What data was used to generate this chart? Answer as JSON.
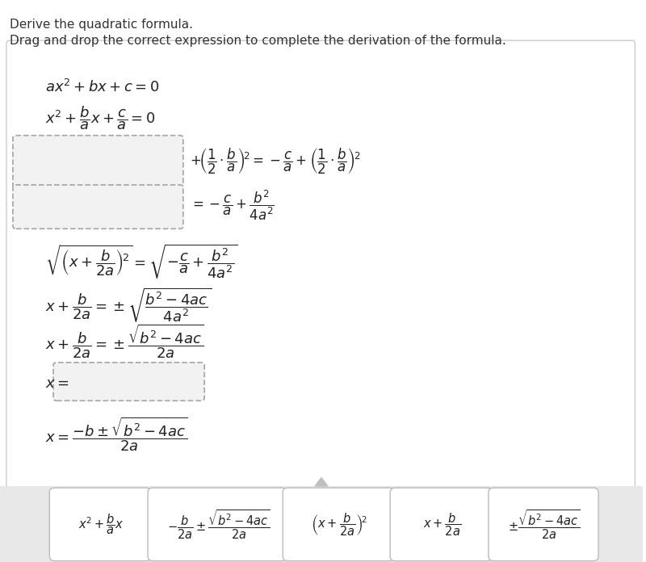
{
  "title1": "Derive the quadratic formula.",
  "title2": "Drag and drop the correct expression to complete the derivation of the formula.",
  "bg_color": "#ffffff",
  "main_box_edge": "#cccccc",
  "dashed_edge": "#aaaaaa",
  "drop_bg": "#e8e8e8",
  "card_color": "#ffffff",
  "card_edge": "#bbbbbb"
}
